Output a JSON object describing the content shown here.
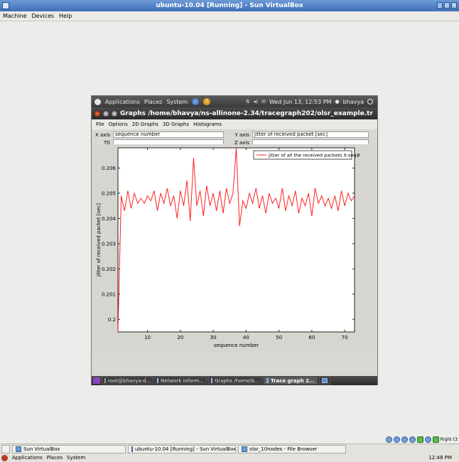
{
  "host": {
    "title": "ubuntu-10.04 [Running] - Sun VirtualBox",
    "menu": [
      "Machine",
      "Devices",
      "Help"
    ],
    "taskbar": {
      "items": [
        {
          "label": "Sun VirtualBox"
        },
        {
          "label": "ubuntu-10.04 [Running] - Sun VirtualBox"
        },
        {
          "label": "olsr_10nodes - File Browser"
        }
      ]
    },
    "tray_label": "Right Ct",
    "panel": {
      "applications": "Applications",
      "places": "Places",
      "system": "System",
      "clock": "12:48 PM"
    }
  },
  "guest": {
    "top_panel": {
      "applications": "Applications",
      "places": "Places",
      "system": "System",
      "datetime": "Wed Jun 13, 12:53 PM",
      "user": "bhavya"
    },
    "window": {
      "title": "Graphs /home/bhavya/ns-allinone-2.34/tracegraph202/olsr_example.tr",
      "menu": [
        "File",
        "Options",
        "2D Graphs",
        "3D Graphs",
        "Histograms"
      ],
      "x_axis_label": "X axis",
      "x_axis_value": "sequence number",
      "y_axis_label": "Y axis",
      "y_axis_value": "jitter of received packet [sec]",
      "title_label": "Ttl",
      "title_value": "",
      "z_axis_label": "Z axis",
      "z_axis_value": ""
    },
    "taskbar": {
      "items": [
        {
          "label": "root@bhavya-d..."
        },
        {
          "label": "Network inform..."
        },
        {
          "label": "Graphs /home/b..."
        },
        {
          "label": "Trace graph 2..."
        }
      ]
    }
  },
  "chart_data": {
    "type": "line",
    "title": "",
    "xlabel": "sequence number",
    "ylabel": "jitter of received packet [sec]",
    "xlim": [
      1,
      73
    ],
    "ylim": [
      0.1995,
      0.2068
    ],
    "xticks": [
      10,
      20,
      30,
      40,
      50,
      60,
      70
    ],
    "yticks": [
      0.2,
      0.201,
      0.202,
      0.203,
      0.204,
      0.205,
      0.206
    ],
    "grid": false,
    "legend_position": "top-right",
    "series": [
      {
        "name": "jitter of all the received packets X:seq#",
        "color": "#ff2020",
        "x": [
          1,
          2,
          3,
          4,
          5,
          6,
          7,
          8,
          9,
          10,
          11,
          12,
          13,
          14,
          15,
          16,
          17,
          18,
          19,
          20,
          21,
          22,
          23,
          24,
          25,
          26,
          27,
          28,
          29,
          30,
          31,
          32,
          33,
          34,
          35,
          36,
          37,
          38,
          39,
          40,
          41,
          42,
          43,
          44,
          45,
          46,
          47,
          48,
          49,
          50,
          51,
          52,
          53,
          54,
          55,
          56,
          57,
          58,
          59,
          60,
          61,
          62,
          63,
          64,
          65,
          66,
          67,
          68,
          69,
          70,
          71,
          72,
          73
        ],
        "values": [
          0.1995,
          0.2049,
          0.2043,
          0.2051,
          0.2044,
          0.205,
          0.2046,
          0.2048,
          0.2046,
          0.2049,
          0.2047,
          0.2051,
          0.2043,
          0.205,
          0.2046,
          0.2052,
          0.2045,
          0.2049,
          0.204,
          0.2051,
          0.2045,
          0.2055,
          0.2039,
          0.2064,
          0.2045,
          0.2051,
          0.2041,
          0.2053,
          0.2045,
          0.205,
          0.2043,
          0.2051,
          0.2042,
          0.2052,
          0.2046,
          0.205,
          0.2068,
          0.2037,
          0.2047,
          0.2044,
          0.205,
          0.2046,
          0.2052,
          0.2044,
          0.2049,
          0.2042,
          0.205,
          0.2046,
          0.2048,
          0.2044,
          0.2052,
          0.2043,
          0.2049,
          0.2045,
          0.2051,
          0.2042,
          0.2048,
          0.2045,
          0.205,
          0.2041,
          0.2052,
          0.2046,
          0.2049,
          0.2045,
          0.2048,
          0.2044,
          0.2049,
          0.2043,
          0.2051,
          0.2045,
          0.205,
          0.2047,
          0.2049
        ]
      }
    ]
  }
}
